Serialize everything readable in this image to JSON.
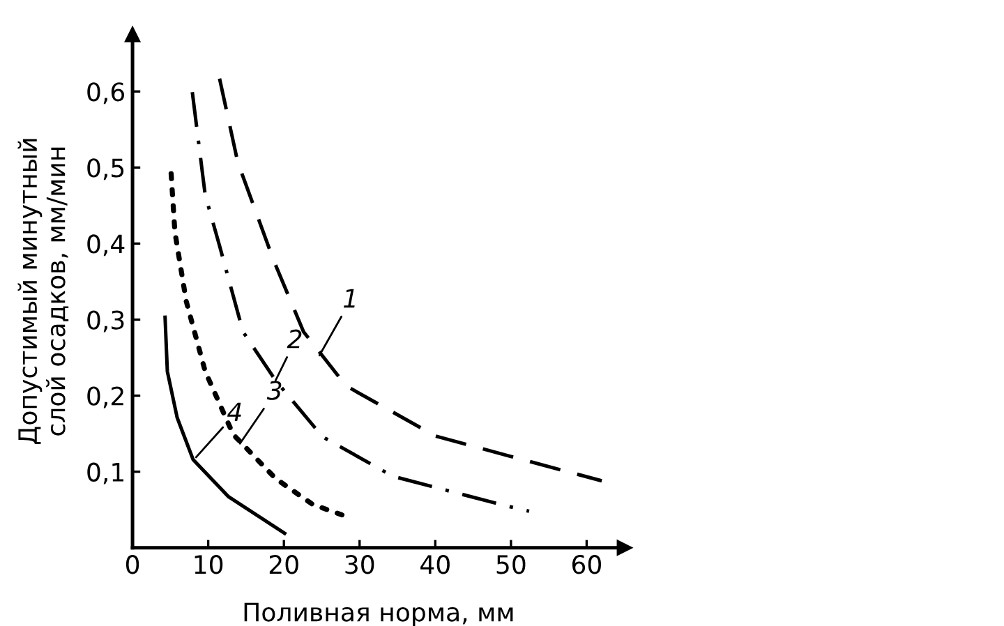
{
  "chart_data": {
    "type": "line",
    "xlabel": "Поливная норма, мм",
    "ylabel": "Допустимый минутный\nслой осадков, мм/мин",
    "series": [
      {
        "color": "#000000",
        "line_style": "dashed",
        "x": [
          11.5,
          13.9,
          18.6,
          22.6,
          28.2,
          40,
          50,
          62
        ],
        "values": [
          0.617,
          0.507,
          0.379,
          0.284,
          0.213,
          0.147,
          0.12,
          0.088
        ]
      },
      {
        "color": "#000000",
        "line_style": "dashdot",
        "x": [
          7.9,
          9.6,
          11.5,
          14.6,
          18.9,
          25.1,
          34.4,
          48.6,
          52.4
        ],
        "values": [
          0.599,
          0.464,
          0.397,
          0.284,
          0.22,
          0.146,
          0.094,
          0.057,
          0.048
        ]
      },
      {
        "color": "#000000",
        "line_style": "dotted",
        "x": [
          5.1,
          5.6,
          7.1,
          9.6,
          13.3,
          18.9,
          23.8,
          28
        ],
        "values": [
          0.492,
          0.415,
          0.324,
          0.232,
          0.149,
          0.091,
          0.057,
          0.042
        ]
      },
      {
        "color": "#000000",
        "line_style": "solid",
        "x": [
          4.3,
          4.6,
          5.9,
          8.0,
          12.7,
          20.1
        ],
        "values": [
          0.303,
          0.232,
          0.171,
          0.116,
          0.067,
          0.019
        ]
      }
    ],
    "annotations": [
      {
        "text": "1",
        "x": 24.7,
        "y": 0.253
      },
      {
        "text": "2",
        "x": 18.9,
        "y": 0.22
      },
      {
        "text": "3",
        "x": 14.2,
        "y": 0.137
      },
      {
        "text": "4",
        "x": 8.4,
        "y": 0.119
      }
    ],
    "xlim": [
      0,
      65
    ],
    "ylim": [
      0,
      0.675
    ],
    "xticks": [
      0,
      10,
      20,
      30,
      40,
      50,
      60
    ],
    "yticks": [
      {
        "value": 0.1,
        "label": "0,1"
      },
      {
        "value": 0.2,
        "label": "0,2"
      },
      {
        "value": 0.3,
        "label": "0,3"
      },
      {
        "value": 0.4,
        "label": "0,4"
      },
      {
        "value": 0.5,
        "label": "0,5"
      },
      {
        "value": 0.6,
        "label": "0,6"
      }
    ],
    "grid": false,
    "legend": false,
    "marker": "none"
  }
}
